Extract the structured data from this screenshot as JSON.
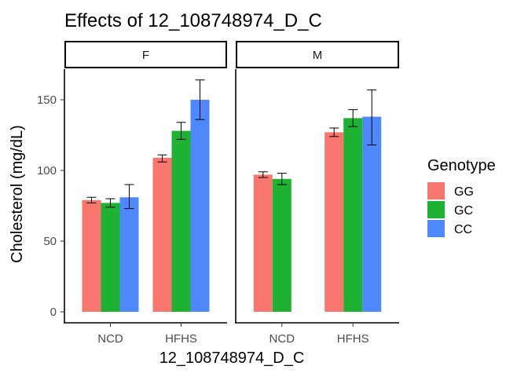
{
  "chart_data": {
    "type": "bar",
    "title": "Effects of  12_108748974_D_C",
    "xlabel": "12_108748974_D_C",
    "ylabel": "Cholesterol (mg/dL)",
    "ylim": [
      0,
      165
    ],
    "yticks": [
      0,
      50,
      100,
      150
    ],
    "legend": {
      "title": "Genotype",
      "placement": "right",
      "entries": [
        {
          "label": "GG",
          "color": "#F8766D"
        },
        {
          "label": "GC",
          "color": "#1DB232"
        },
        {
          "label": "CC",
          "color": "#4E88FF"
        }
      ]
    },
    "facets": [
      {
        "label": "F",
        "categories": [
          "NCD",
          "HFHS"
        ],
        "series": [
          {
            "name": "GG",
            "values": [
              79,
              109
            ],
            "err_low": [
              77,
              106
            ],
            "err_high": [
              81,
              111
            ]
          },
          {
            "name": "GC",
            "values": [
              77,
              128
            ],
            "err_low": [
              74,
              122
            ],
            "err_high": [
              80,
              134
            ]
          },
          {
            "name": "CC",
            "values": [
              81,
              150
            ],
            "err_low": [
              73,
              136
            ],
            "err_high": [
              90,
              164
            ]
          }
        ]
      },
      {
        "label": "M",
        "categories": [
          "NCD",
          "HFHS"
        ],
        "series": [
          {
            "name": "GG",
            "values": [
              97,
              127
            ],
            "err_low": [
              95,
              124
            ],
            "err_high": [
              99,
              130
            ]
          },
          {
            "name": "GC",
            "values": [
              94,
              137
            ],
            "err_low": [
              90,
              131
            ],
            "err_high": [
              98,
              143
            ]
          },
          {
            "name": "CC",
            "values": [
              null,
              138
            ],
            "err_low": [
              null,
              118
            ],
            "err_high": [
              null,
              157
            ]
          }
        ]
      }
    ]
  }
}
